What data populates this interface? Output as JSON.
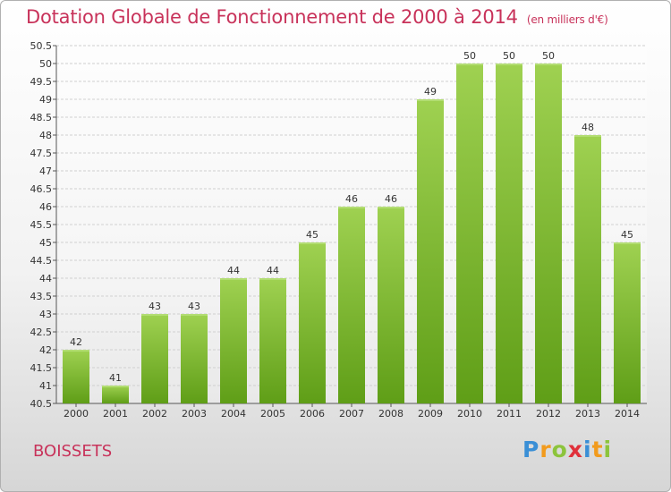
{
  "title": "Dotation Globale de Fonctionnement de 2000 à 2014",
  "unit_note": "(en milliers d'€)",
  "commune": "BOISSETS",
  "logo": {
    "text": "Proxiti",
    "letters": [
      {
        "ch": "P",
        "color": "#3a8fd6"
      },
      {
        "ch": "r",
        "color": "#f29b1d"
      },
      {
        "ch": "o",
        "color": "#8cc43c"
      },
      {
        "ch": "x",
        "color": "#e0303a"
      },
      {
        "ch": "i",
        "color": "#3a8fd6"
      },
      {
        "ch": "t",
        "color": "#f29b1d"
      },
      {
        "ch": "i",
        "color": "#8cc43c"
      }
    ]
  },
  "colors": {
    "accent": "#c8325a",
    "bar_top": "#9fd151",
    "bar_bottom": "#5f9e17",
    "grid": "#d0d0d0"
  },
  "chart_data": {
    "type": "bar",
    "title": "Dotation Globale de Fonctionnement de 2000 à 2014",
    "xlabel": "",
    "ylabel": "en milliers d'€",
    "categories": [
      "2000",
      "2001",
      "2002",
      "2003",
      "2004",
      "2005",
      "2006",
      "2007",
      "2008",
      "2009",
      "2010",
      "2011",
      "2012",
      "2013",
      "2014"
    ],
    "values": [
      42,
      41,
      43,
      43,
      44,
      44,
      45,
      46,
      46,
      49,
      50,
      50,
      50,
      48,
      45
    ],
    "ylim": [
      40.5,
      50.5
    ],
    "yticks": [
      "40.5",
      "41",
      "41.5",
      "42",
      "42.5",
      "43",
      "43.5",
      "44",
      "44.5",
      "45",
      "45.5",
      "46",
      "46.5",
      "47",
      "47.5",
      "48",
      "48.5",
      "49",
      "49.5",
      "50",
      "50.5"
    ],
    "grid": true
  }
}
